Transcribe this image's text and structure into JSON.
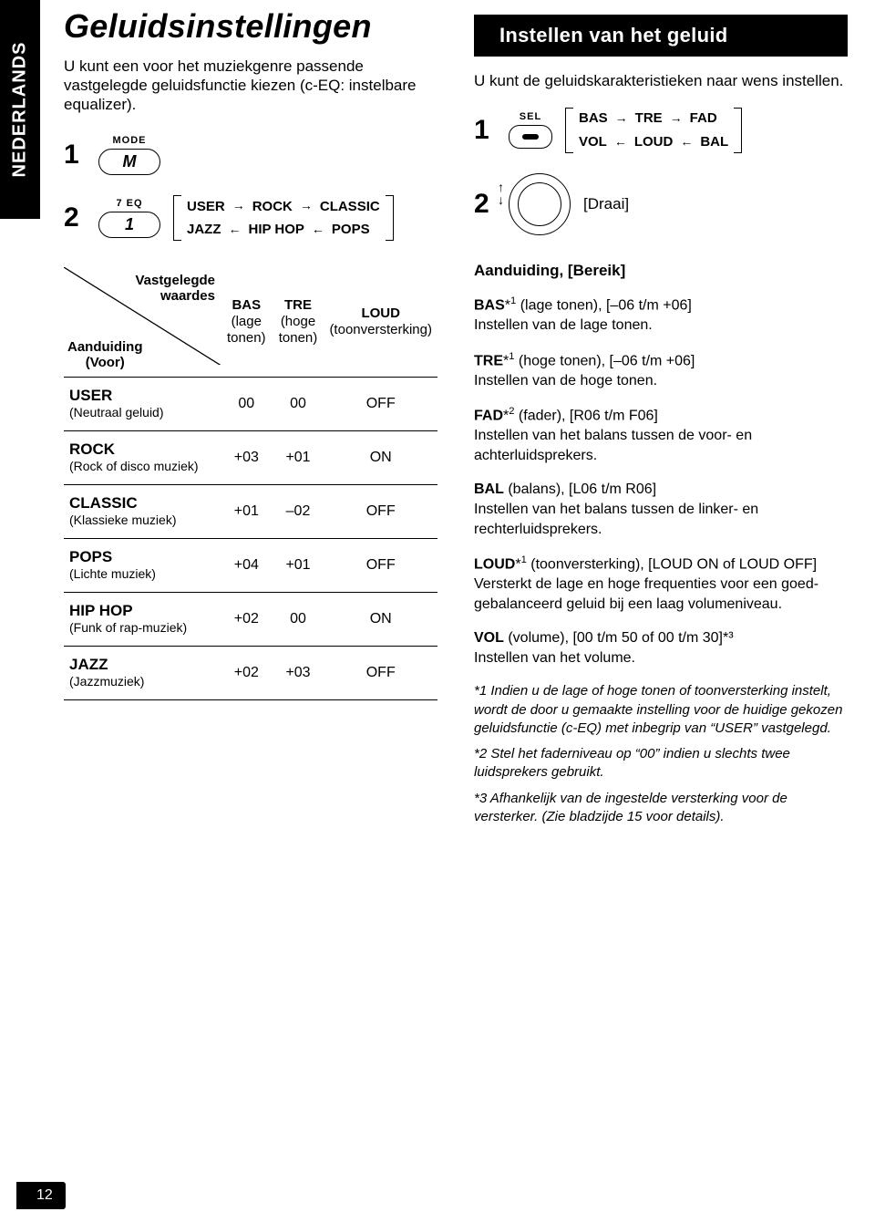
{
  "language_tab": "NEDERLANDS",
  "page_number": "12",
  "left": {
    "title": "Geluidsinstellingen",
    "intro": "U kunt een voor het muziekgenre passende vastgelegde geluidsfunctie kiezen (c-EQ: instelbare equalizer).",
    "step1_btn_label": "MODE",
    "step1_btn_glyph": "M",
    "step2_btn_top": "7  EQ",
    "step2_btn_glyph": "1",
    "eq_flow": {
      "top": [
        "USER",
        "ROCK",
        "CLASSIC"
      ],
      "bottom": [
        "JAZZ",
        "HIP HOP",
        "POPS"
      ]
    },
    "table": {
      "diag_top": "Vastgelegde\nwaardes",
      "diag_bottom": "Aanduiding\n(Voor)",
      "cols": [
        {
          "h1": "BAS",
          "h2": "(lage tonen)"
        },
        {
          "h1": "TRE",
          "h2": "(hoge tonen)"
        },
        {
          "h1": "LOUD",
          "h2": "(toonversterking)"
        }
      ],
      "rows": [
        {
          "name": "USER",
          "sub": "(Neutraal geluid)",
          "v": [
            "00",
            "00",
            "OFF"
          ]
        },
        {
          "name": "ROCK",
          "sub": "(Rock of disco muziek)",
          "v": [
            "+03",
            "+01",
            "ON"
          ]
        },
        {
          "name": "CLASSIC",
          "sub": "(Klassieke muziek)",
          "v": [
            "+01",
            "–02",
            "OFF"
          ]
        },
        {
          "name": "POPS",
          "sub": "(Lichte muziek)",
          "v": [
            "+04",
            "+01",
            "OFF"
          ]
        },
        {
          "name": "HIP HOP",
          "sub": "(Funk of rap-muziek)",
          "v": [
            "+02",
            "00",
            "ON"
          ]
        },
        {
          "name": "JAZZ",
          "sub": "(Jazzmuziek)",
          "v": [
            "+02",
            "+03",
            "OFF"
          ]
        }
      ]
    }
  },
  "right": {
    "title": "Instellen van het geluid",
    "intro": "U kunt de geluidskarakteristieken naar wens instellen.",
    "step1_btn_label": "SEL",
    "sel_flow": {
      "top": [
        "BAS",
        "TRE",
        "FAD"
      ],
      "bottom": [
        "VOL",
        "LOUD",
        "BAL"
      ]
    },
    "step2_label": "[Draai]",
    "defs_head": "Aanduiding, [Bereik]",
    "defs": [
      {
        "name": "BAS",
        "sup": "1",
        "tail": " (lage tonen), [–06 t/m +06]",
        "line2": "Instellen van de lage tonen."
      },
      {
        "name": "TRE",
        "sup": "1",
        "tail": " (hoge tonen), [–06 t/m +06]",
        "line2": "Instellen van de hoge tonen."
      },
      {
        "name": "FAD",
        "sup": "2",
        "tail": " (fader), [R06 t/m F06]",
        "line2": "Instellen van het balans tussen de voor- en achterluidsprekers."
      },
      {
        "name": "BAL",
        "sup": "",
        "tail": " (balans), [L06 t/m R06]",
        "line2": "Instellen van het balans tussen de linker- en rechterluidsprekers."
      },
      {
        "name": "LOUD",
        "sup": "1",
        "tail": " (toonversterking), [LOUD ON of LOUD OFF]",
        "line2": "Versterkt de lage en hoge frequenties voor een goed-gebalanceerd geluid bij een laag volumeniveau."
      },
      {
        "name": "VOL",
        "sup": "",
        "tail": " (volume), [00 t/m 50 of 00 t/m 30]*³",
        "line2": "Instellen van het volume."
      }
    ],
    "footnotes": [
      "*1  Indien u de lage of hoge tonen of toonversterking instelt, wordt de door u gemaakte instelling voor de huidige gekozen geluidsfunctie (c-EQ) met inbegrip van “USER” vastgelegd.",
      "*2  Stel het faderniveau op “00” indien u slechts twee luidsprekers gebruikt.",
      "*3  Afhankelijk van de ingestelde versterking voor de versterker. (Zie bladzijde 15 voor details)."
    ]
  }
}
